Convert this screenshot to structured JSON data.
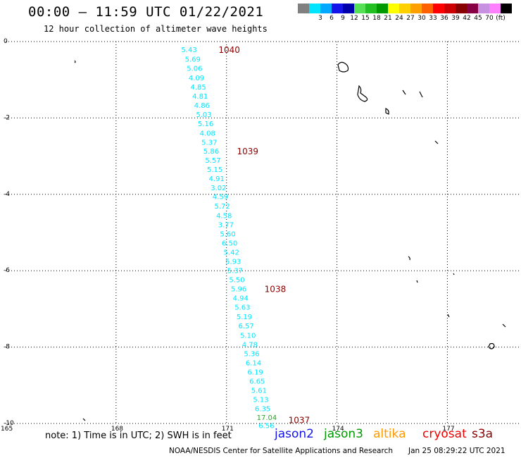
{
  "header": {
    "title": "00:00 – 11:59 UTC 01/22/2021",
    "subtitle": "12 hour collection of altimeter wave heights"
  },
  "colorbar": {
    "colors": [
      "#808080",
      "#00e5ff",
      "#00a8ff",
      "#1414e8",
      "#0000aa",
      "#55e055",
      "#22c022",
      "#009900",
      "#ffff00",
      "#ffd000",
      "#ffa000",
      "#ff6000",
      "#ff0000",
      "#cc0000",
      "#880000",
      "#880044",
      "#c890e0",
      "#ff80ff",
      "#000000"
    ],
    "labels": [
      "",
      "3",
      "6",
      "9",
      "12",
      "15",
      "18",
      "21",
      "24",
      "27",
      "30",
      "33",
      "36",
      "39",
      "42",
      "45",
      "70",
      "(ft)",
      ""
    ]
  },
  "map": {
    "lon_min": 165,
    "lon_max": 179,
    "lat_min": -10,
    "lat_max": 0,
    "lat_ticks": [
      0,
      -2,
      -4,
      -6,
      -8,
      -10
    ],
    "lat_tick_labels": [
      "0",
      "-2",
      "-4",
      "-6",
      "-8",
      "-10"
    ],
    "lon_ticks": [
      165,
      168,
      171,
      174,
      177
    ],
    "lon_tick_labels": [
      "165",
      "168",
      "171",
      "174",
      "177"
    ]
  },
  "track": {
    "observations": [
      {
        "lon": 170.0,
        "lat": -0.2,
        "swh": "5.43",
        "color": "#00e5ff"
      },
      {
        "lon": 170.1,
        "lat": -0.45,
        "swh": "5.69",
        "color": "#00e5ff"
      },
      {
        "lon": 170.15,
        "lat": -0.69,
        "swh": "5.06",
        "color": "#00e5ff"
      },
      {
        "lon": 170.2,
        "lat": -0.94,
        "swh": "4.09",
        "color": "#00e5ff"
      },
      {
        "lon": 170.25,
        "lat": -1.18,
        "swh": "4.85",
        "color": "#00e5ff"
      },
      {
        "lon": 170.3,
        "lat": -1.42,
        "swh": "4.81",
        "color": "#00e5ff"
      },
      {
        "lon": 170.35,
        "lat": -1.66,
        "swh": "4.86",
        "color": "#00e5ff"
      },
      {
        "lon": 170.4,
        "lat": -1.9,
        "swh": "5.03",
        "color": "#00e5ff"
      },
      {
        "lon": 170.45,
        "lat": -2.14,
        "swh": "5.16",
        "color": "#00e5ff"
      },
      {
        "lon": 170.5,
        "lat": -2.39,
        "swh": "4.08",
        "color": "#00e5ff"
      },
      {
        "lon": 170.55,
        "lat": -2.63,
        "swh": "5.37",
        "color": "#00e5ff"
      },
      {
        "lon": 170.6,
        "lat": -2.86,
        "swh": "5.86",
        "color": "#00e5ff"
      },
      {
        "lon": 170.65,
        "lat": -3.1,
        "swh": "5.57",
        "color": "#00e5ff"
      },
      {
        "lon": 170.7,
        "lat": -3.34,
        "swh": "5.15",
        "color": "#00e5ff"
      },
      {
        "lon": 170.75,
        "lat": -3.58,
        "swh": "4.91",
        "color": "#00e5ff"
      },
      {
        "lon": 170.8,
        "lat": -3.82,
        "swh": "3.02",
        "color": "#00e5ff"
      },
      {
        "lon": 170.85,
        "lat": -4.05,
        "swh": "4.59",
        "color": "#00e5ff"
      },
      {
        "lon": 170.9,
        "lat": -4.3,
        "swh": "5.72",
        "color": "#00e5ff"
      },
      {
        "lon": 170.95,
        "lat": -4.55,
        "swh": "4.58",
        "color": "#00e5ff"
      },
      {
        "lon": 171.0,
        "lat": -4.79,
        "swh": "3.77",
        "color": "#00e5ff"
      },
      {
        "lon": 171.05,
        "lat": -5.03,
        "swh": "5.60",
        "color": "#00e5ff"
      },
      {
        "lon": 171.1,
        "lat": -5.27,
        "swh": "6.50",
        "color": "#00e5ff"
      },
      {
        "lon": 171.15,
        "lat": -5.51,
        "swh": "5.42",
        "color": "#00e5ff"
      },
      {
        "lon": 171.2,
        "lat": -5.75,
        "swh": "5.93",
        "color": "#00e5ff"
      },
      {
        "lon": 171.25,
        "lat": -5.99,
        "swh": "5.37",
        "color": "#00e5ff"
      },
      {
        "lon": 171.3,
        "lat": -6.23,
        "swh": "5.50",
        "color": "#00e5ff"
      },
      {
        "lon": 171.35,
        "lat": -6.47,
        "swh": "5.96",
        "color": "#00e5ff"
      },
      {
        "lon": 171.4,
        "lat": -6.71,
        "swh": "4.94",
        "color": "#00e5ff"
      },
      {
        "lon": 171.45,
        "lat": -6.95,
        "swh": "5.63",
        "color": "#00e5ff"
      },
      {
        "lon": 171.5,
        "lat": -7.2,
        "swh": "5.19",
        "color": "#00e5ff"
      },
      {
        "lon": 171.55,
        "lat": -7.44,
        "swh": "6.57",
        "color": "#00e5ff"
      },
      {
        "lon": 171.6,
        "lat": -7.68,
        "swh": "5.10",
        "color": "#00e5ff"
      },
      {
        "lon": 171.65,
        "lat": -7.92,
        "swh": "4.78",
        "color": "#00e5ff"
      },
      {
        "lon": 171.7,
        "lat": -8.16,
        "swh": "5.36",
        "color": "#00e5ff"
      },
      {
        "lon": 171.75,
        "lat": -8.4,
        "swh": "6.14",
        "color": "#00e5ff"
      },
      {
        "lon": 171.8,
        "lat": -8.64,
        "swh": "6.19",
        "color": "#00e5ff"
      },
      {
        "lon": 171.85,
        "lat": -8.88,
        "swh": "6.65",
        "color": "#00e5ff"
      },
      {
        "lon": 171.9,
        "lat": -9.12,
        "swh": "5.61",
        "color": "#00e5ff"
      },
      {
        "lon": 171.95,
        "lat": -9.36,
        "swh": "5.13",
        "color": "#00e5ff"
      },
      {
        "lon": 172.0,
        "lat": -9.6,
        "swh": "6.35",
        "color": "#00e5ff"
      },
      {
        "lon": 172.05,
        "lat": -9.83,
        "swh": "17.04",
        "color": "#22aa22"
      },
      {
        "lon": 172.1,
        "lat": -10.05,
        "swh": "6.56",
        "color": "#00e5ff"
      }
    ],
    "time_labels": [
      {
        "lon": 171.05,
        "lat": -0.2,
        "text": "1040"
      },
      {
        "lon": 171.55,
        "lat": -2.86,
        "text": "1039"
      },
      {
        "lon": 172.3,
        "lat": -6.47,
        "text": "1038"
      },
      {
        "lon": 172.95,
        "lat": -9.9,
        "text": "1037"
      }
    ],
    "time_color": "#8b0000"
  },
  "footer": {
    "note": "note: 1) Time is in UTC; 2) SWH is in feet",
    "credit": "NOAA/NESDIS Center for Satellite Applications and Research",
    "timestamp": "Jan 25 08:29:22 UTC 2021",
    "satellites": [
      {
        "name": "jason2",
        "color": "#1414e8"
      },
      {
        "name": "jason3",
        "color": "#009900"
      },
      {
        "name": "altika",
        "color": "#ff9900"
      },
      {
        "name": "cryosat",
        "color": "#ee0000"
      },
      {
        "name": "s3a",
        "color": "#880000"
      }
    ]
  }
}
